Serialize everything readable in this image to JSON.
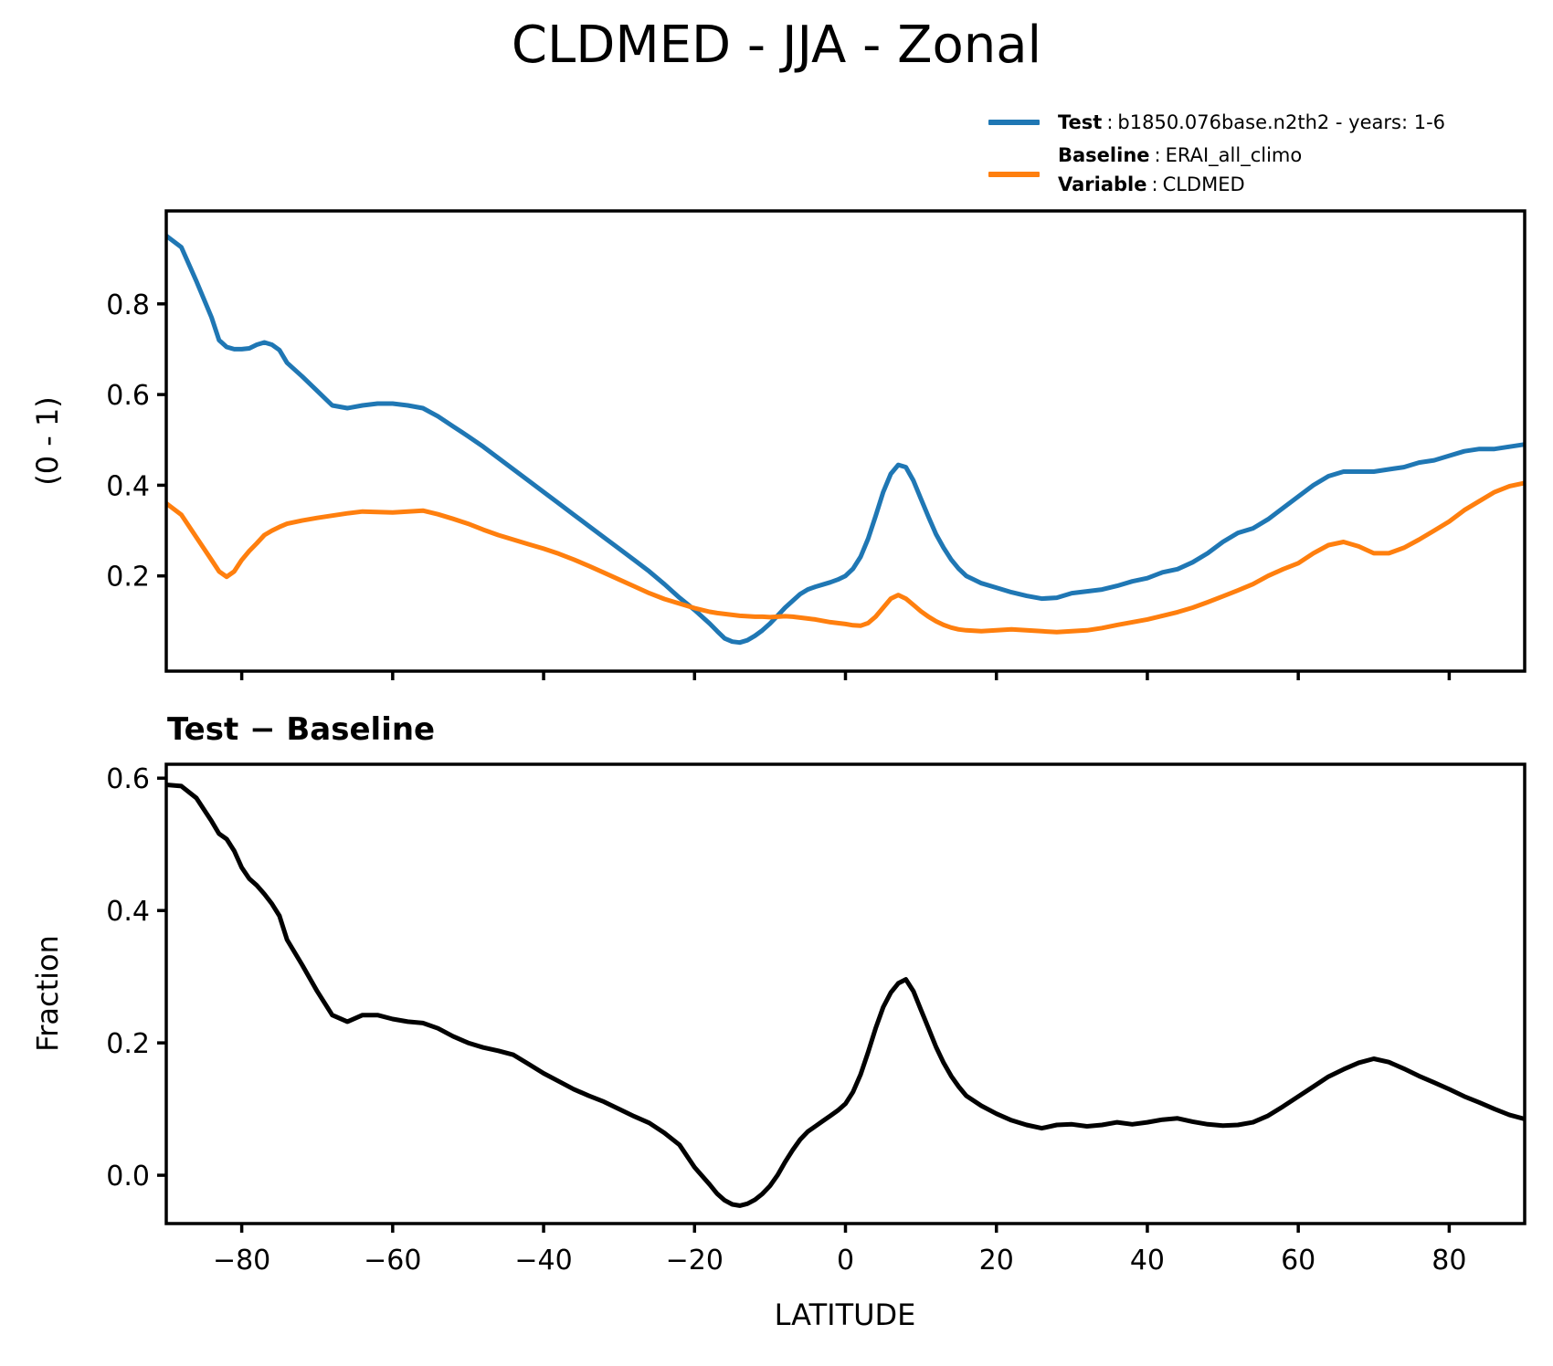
{
  "title": "CLDMED - JJA - Zonal",
  "legend": {
    "sep": ":",
    "entries": [
      {
        "label": "Test",
        "value": "b1850.076base.n2th2 - years: 1-6",
        "color": "#1f77b4"
      },
      {
        "label": "Baseline",
        "value": "ERAI_all_climo",
        "color": "#ff7f0e"
      },
      {
        "label": "Variable",
        "value": "CLDMED",
        "color": ""
      }
    ]
  },
  "colors": {
    "test": "#1f77b4",
    "baseline": "#ff7f0e",
    "diff": "#000000",
    "axis": "#000000"
  },
  "chart_data": [
    {
      "type": "line",
      "id": "zonal-mean",
      "title": "CLDMED - JJA - Zonal",
      "ylabel": "(0 - 1)",
      "xlabel": "",
      "x_range": [
        -90,
        90
      ],
      "y_range": [
        -0.01,
        1.005
      ],
      "grid": false,
      "xticks": [
        -80,
        -60,
        -40,
        -20,
        0,
        20,
        40,
        60,
        80
      ],
      "xtick_labels": [],
      "yticks": [
        0.2,
        0.4,
        0.6,
        0.8
      ],
      "ytick_labels": [
        "0.2",
        "0.4",
        "0.6",
        "0.8"
      ],
      "x": [
        -90,
        -88,
        -86,
        -84,
        -83,
        -82,
        -81,
        -80,
        -79,
        -78,
        -77,
        -76,
        -75,
        -74,
        -72,
        -70,
        -68,
        -66,
        -64,
        -62,
        -60,
        -58,
        -56,
        -54,
        -52,
        -50,
        -48,
        -46,
        -44,
        -42,
        -40,
        -38,
        -36,
        -34,
        -32,
        -30,
        -28,
        -26,
        -24,
        -22,
        -20,
        -18,
        -17,
        -16,
        -15,
        -14,
        -13,
        -12,
        -11,
        -10,
        -9,
        -8,
        -7,
        -6,
        -5,
        -4,
        -3,
        -2,
        -1,
        0,
        1,
        2,
        3,
        4,
        5,
        6,
        7,
        8,
        9,
        10,
        11,
        12,
        13,
        14,
        15,
        16,
        18,
        20,
        22,
        24,
        26,
        28,
        30,
        32,
        34,
        36,
        38,
        40,
        42,
        44,
        46,
        48,
        50,
        52,
        54,
        56,
        58,
        60,
        62,
        64,
        66,
        68,
        70,
        72,
        74,
        76,
        78,
        80,
        82,
        84,
        86,
        88,
        90
      ],
      "series": [
        {
          "name": "Test",
          "color": "#1f77b4",
          "values": [
            0.95,
            0.925,
            0.85,
            0.77,
            0.72,
            0.705,
            0.7,
            0.7,
            0.702,
            0.71,
            0.715,
            0.71,
            0.698,
            0.67,
            0.64,
            0.608,
            0.576,
            0.57,
            0.576,
            0.58,
            0.58,
            0.576,
            0.57,
            0.552,
            0.53,
            0.508,
            0.485,
            0.46,
            0.435,
            0.41,
            0.385,
            0.36,
            0.335,
            0.31,
            0.285,
            0.26,
            0.235,
            0.21,
            0.182,
            0.152,
            0.125,
            0.095,
            0.078,
            0.062,
            0.055,
            0.053,
            0.058,
            0.068,
            0.08,
            0.095,
            0.112,
            0.13,
            0.145,
            0.16,
            0.17,
            0.176,
            0.181,
            0.186,
            0.192,
            0.2,
            0.216,
            0.242,
            0.282,
            0.332,
            0.385,
            0.425,
            0.445,
            0.44,
            0.41,
            0.37,
            0.33,
            0.292,
            0.262,
            0.236,
            0.216,
            0.2,
            0.184,
            0.174,
            0.164,
            0.156,
            0.15,
            0.152,
            0.162,
            0.166,
            0.17,
            0.178,
            0.188,
            0.195,
            0.208,
            0.215,
            0.23,
            0.25,
            0.275,
            0.295,
            0.305,
            0.325,
            0.35,
            0.375,
            0.4,
            0.42,
            0.43,
            0.43,
            0.43,
            0.435,
            0.44,
            0.45,
            0.455,
            0.465,
            0.475,
            0.48,
            0.48,
            0.485,
            0.49
          ]
        },
        {
          "name": "Baseline",
          "color": "#ff7f0e",
          "values": [
            0.36,
            0.335,
            0.285,
            0.235,
            0.21,
            0.198,
            0.21,
            0.235,
            0.255,
            0.272,
            0.29,
            0.3,
            0.308,
            0.315,
            0.322,
            0.328,
            0.333,
            0.338,
            0.342,
            0.341,
            0.34,
            0.342,
            0.344,
            0.336,
            0.326,
            0.315,
            0.302,
            0.29,
            0.28,
            0.27,
            0.26,
            0.249,
            0.236,
            0.222,
            0.207,
            0.192,
            0.177,
            0.162,
            0.149,
            0.139,
            0.129,
            0.121,
            0.118,
            0.116,
            0.114,
            0.112,
            0.111,
            0.11,
            0.11,
            0.109,
            0.11,
            0.111,
            0.11,
            0.108,
            0.106,
            0.104,
            0.101,
            0.098,
            0.096,
            0.094,
            0.091,
            0.09,
            0.096,
            0.11,
            0.13,
            0.15,
            0.158,
            0.15,
            0.136,
            0.122,
            0.11,
            0.1,
            0.092,
            0.086,
            0.082,
            0.08,
            0.078,
            0.08,
            0.082,
            0.08,
            0.078,
            0.076,
            0.078,
            0.08,
            0.085,
            0.092,
            0.098,
            0.104,
            0.112,
            0.12,
            0.13,
            0.142,
            0.155,
            0.168,
            0.182,
            0.2,
            0.215,
            0.228,
            0.25,
            0.268,
            0.275,
            0.265,
            0.25,
            0.25,
            0.262,
            0.28,
            0.3,
            0.32,
            0.345,
            0.365,
            0.385,
            0.398,
            0.405
          ]
        }
      ]
    },
    {
      "type": "line",
      "id": "difference",
      "title": "Test − Baseline",
      "ylabel": "Fraction",
      "xlabel": "LATITUDE",
      "x_range": [
        -90,
        90
      ],
      "y_range": [
        -0.073,
        0.621
      ],
      "grid": false,
      "xticks": [
        -80,
        -60,
        -40,
        -20,
        0,
        20,
        40,
        60,
        80
      ],
      "xtick_labels": [
        "−80",
        "−60",
        "−40",
        "−20",
        "0",
        "20",
        "40",
        "60",
        "80"
      ],
      "yticks": [
        0.0,
        0.2,
        0.4,
        0.6
      ],
      "ytick_labels": [
        "0.0",
        "0.2",
        "0.4",
        "0.6"
      ],
      "x": [
        -90,
        -88,
        -86,
        -84,
        -83,
        -82,
        -81,
        -80,
        -79,
        -78,
        -77,
        -76,
        -75,
        -74,
        -72,
        -70,
        -68,
        -66,
        -64,
        -62,
        -60,
        -58,
        -56,
        -54,
        -52,
        -50,
        -48,
        -46,
        -44,
        -42,
        -40,
        -38,
        -36,
        -34,
        -32,
        -30,
        -28,
        -26,
        -24,
        -22,
        -20,
        -18,
        -17,
        -16,
        -15,
        -14,
        -13,
        -12,
        -11,
        -10,
        -9,
        -8,
        -7,
        -6,
        -5,
        -4,
        -3,
        -2,
        -1,
        0,
        1,
        2,
        3,
        4,
        5,
        6,
        7,
        8,
        9,
        10,
        11,
        12,
        13,
        14,
        15,
        16,
        18,
        20,
        22,
        24,
        26,
        28,
        30,
        32,
        34,
        36,
        38,
        40,
        42,
        44,
        46,
        48,
        50,
        52,
        54,
        56,
        58,
        60,
        62,
        64,
        66,
        68,
        70,
        72,
        74,
        76,
        78,
        80,
        82,
        84,
        86,
        88,
        90
      ],
      "series": [
        {
          "name": "Test - Baseline",
          "color": "#000000",
          "values": [
            0.59,
            0.588,
            0.57,
            0.535,
            0.516,
            0.508,
            0.49,
            0.465,
            0.448,
            0.438,
            0.425,
            0.41,
            0.392,
            0.356,
            0.318,
            0.278,
            0.242,
            0.232,
            0.242,
            0.242,
            0.236,
            0.232,
            0.23,
            0.222,
            0.21,
            0.2,
            0.193,
            0.188,
            0.182,
            0.168,
            0.154,
            0.142,
            0.13,
            0.12,
            0.111,
            0.1,
            0.089,
            0.079,
            0.064,
            0.046,
            0.012,
            -0.014,
            -0.028,
            -0.038,
            -0.044,
            -0.046,
            -0.043,
            -0.037,
            -0.028,
            -0.016,
            0.0,
            0.02,
            0.038,
            0.054,
            0.066,
            0.074,
            0.082,
            0.09,
            0.098,
            0.108,
            0.126,
            0.152,
            0.186,
            0.222,
            0.254,
            0.276,
            0.29,
            0.296,
            0.278,
            0.25,
            0.222,
            0.194,
            0.17,
            0.15,
            0.134,
            0.12,
            0.105,
            0.093,
            0.083,
            0.076,
            0.071,
            0.076,
            0.077,
            0.074,
            0.076,
            0.08,
            0.077,
            0.08,
            0.084,
            0.086,
            0.081,
            0.077,
            0.075,
            0.076,
            0.08,
            0.09,
            0.104,
            0.119,
            0.134,
            0.149,
            0.16,
            0.17,
            0.176,
            0.171,
            0.161,
            0.15,
            0.14,
            0.13,
            0.119,
            0.11,
            0.1,
            0.091,
            0.085
          ]
        }
      ]
    }
  ]
}
